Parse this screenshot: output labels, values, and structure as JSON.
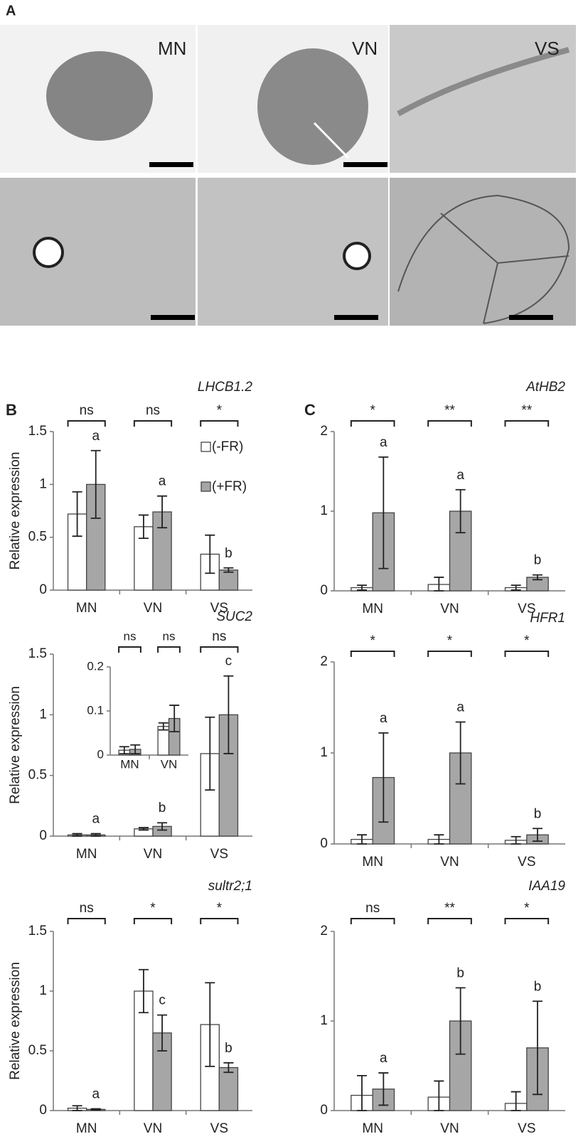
{
  "panel_labels": [
    "A",
    "B",
    "C"
  ],
  "panel_a": {
    "labels": [
      "MN",
      "VN",
      "VS"
    ]
  },
  "chart_data": [
    {
      "type": "bar",
      "title": "LHCB1.2",
      "ylabel": "Relative expression",
      "categories": [
        "MN",
        "VN",
        "VS"
      ],
      "ylim": [
        0,
        1.5
      ],
      "yticks": [
        0,
        0.5,
        1,
        1.5
      ],
      "series": [
        {
          "name": "(-FR)",
          "color": "#ffffff",
          "values": [
            0.72,
            0.6,
            0.34
          ],
          "errors": [
            0.21,
            0.11,
            0.18
          ]
        },
        {
          "name": "(+FR)",
          "color": "#a6a6a6",
          "values": [
            1.0,
            0.74,
            0.19
          ],
          "errors": [
            0.32,
            0.15,
            0.02
          ]
        }
      ],
      "significance": [
        "ns",
        "ns",
        "*"
      ],
      "letters": [
        "a",
        "a",
        "b"
      ]
    },
    {
      "type": "bar",
      "title": "SUC2",
      "ylabel": "Relative expression",
      "categories": [
        "MN",
        "VN",
        "VS"
      ],
      "ylim": [
        0,
        1.5
      ],
      "yticks": [
        0,
        0.5,
        1,
        1.5
      ],
      "series": [
        {
          "color": "#ffffff",
          "values": [
            0.01,
            0.06,
            0.68
          ],
          "errors": [
            0.01,
            0.01,
            0.3
          ]
        },
        {
          "color": "#a6a6a6",
          "values": [
            0.01,
            0.08,
            1.0
          ],
          "errors": [
            0.01,
            0.03,
            0.32
          ]
        }
      ],
      "significance": [
        null,
        null,
        "ns"
      ],
      "letters": [
        "a",
        "b",
        "c"
      ]
    },
    {
      "type": "bar",
      "categories": [
        "MN",
        "VN"
      ],
      "ylim": [
        0,
        0.2
      ],
      "yticks": [
        0,
        0.1,
        0.2
      ],
      "series": [
        {
          "color": "#ffffff",
          "values": [
            0.011,
            0.065
          ],
          "errors": [
            0.008,
            0.008
          ]
        },
        {
          "color": "#a6a6a6",
          "values": [
            0.013,
            0.083
          ],
          "errors": [
            0.01,
            0.03
          ]
        }
      ],
      "significance": [
        "ns",
        "ns"
      ]
    },
    {
      "type": "bar",
      "title": "sultr2;1",
      "ylabel": "Relative expression",
      "categories": [
        "MN",
        "VN",
        "VS"
      ],
      "ylim": [
        0,
        1.5
      ],
      "yticks": [
        0,
        0.5,
        1,
        1.5
      ],
      "series": [
        {
          "color": "#ffffff",
          "values": [
            0.02,
            1.0,
            0.72
          ],
          "errors": [
            0.02,
            0.18,
            0.35
          ]
        },
        {
          "color": "#a6a6a6",
          "values": [
            0.01,
            0.65,
            0.36
          ],
          "errors": [
            0.005,
            0.15,
            0.04
          ]
        }
      ],
      "significance": [
        "ns",
        "*",
        "*"
      ],
      "letters": [
        "a",
        "c",
        "b"
      ]
    },
    {
      "type": "bar",
      "title": "AtHB2",
      "categories": [
        "MN",
        "VN",
        "VS"
      ],
      "ylim": [
        0,
        2
      ],
      "yticks": [
        0,
        1,
        2
      ],
      "series": [
        {
          "color": "#ffffff",
          "values": [
            0.04,
            0.08,
            0.04
          ],
          "errors": [
            0.03,
            0.09,
            0.03
          ]
        },
        {
          "color": "#a6a6a6",
          "values": [
            0.98,
            1.0,
            0.17
          ],
          "errors": [
            0.7,
            0.27,
            0.03
          ]
        }
      ],
      "significance": [
        "*",
        "**",
        "**"
      ],
      "letters": [
        "a",
        "a",
        "b"
      ]
    },
    {
      "type": "bar",
      "title": "HFR1",
      "categories": [
        "MN",
        "VN",
        "VS"
      ],
      "ylim": [
        0,
        2
      ],
      "yticks": [
        0,
        1,
        2
      ],
      "series": [
        {
          "color": "#ffffff",
          "values": [
            0.05,
            0.05,
            0.04
          ],
          "errors": [
            0.05,
            0.05,
            0.04
          ]
        },
        {
          "color": "#a6a6a6",
          "values": [
            0.73,
            1.0,
            0.1
          ],
          "errors": [
            0.49,
            0.34,
            0.07
          ]
        }
      ],
      "significance": [
        "*",
        "*",
        "*"
      ],
      "letters": [
        "a",
        "a",
        "b"
      ]
    },
    {
      "type": "bar",
      "title": "IAA19",
      "categories": [
        "MN",
        "VN",
        "VS"
      ],
      "ylim": [
        0,
        2
      ],
      "yticks": [
        0,
        1,
        2
      ],
      "series": [
        {
          "color": "#ffffff",
          "values": [
            0.17,
            0.15,
            0.08
          ],
          "errors": [
            0.22,
            0.18,
            0.13
          ]
        },
        {
          "color": "#a6a6a6",
          "values": [
            0.24,
            1.0,
            0.7
          ],
          "errors": [
            0.18,
            0.37,
            0.52
          ]
        }
      ],
      "significance": [
        "ns",
        "**",
        "*"
      ],
      "letters": [
        "a",
        "b",
        "b"
      ]
    }
  ]
}
